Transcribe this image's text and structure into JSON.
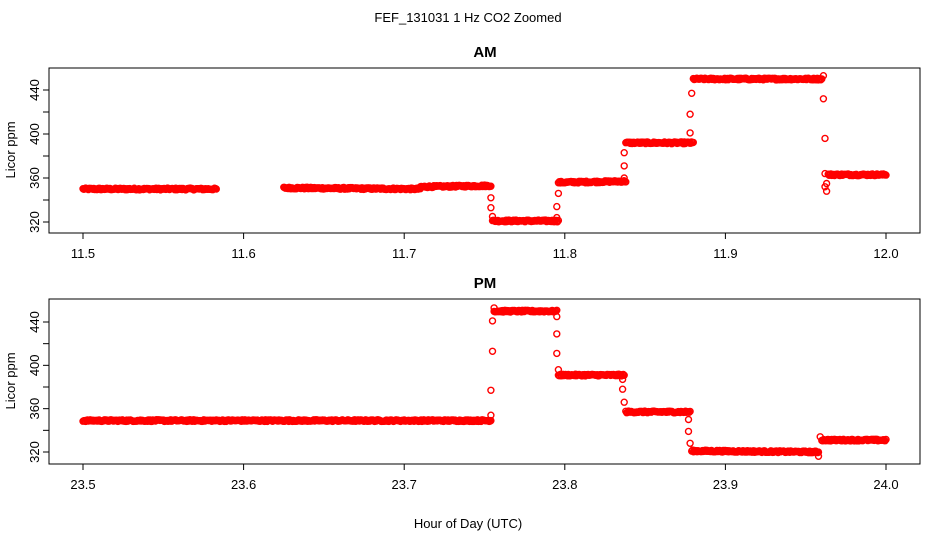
{
  "figure_title": "FEF_131031  1 Hz CO2 Zoomed",
  "shared_xlabel": "Hour of Day (UTC)",
  "chart_data": [
    {
      "type": "scatter",
      "title": "AM",
      "xlabel": "",
      "ylabel": "Licor ppm",
      "xlim": [
        11.5,
        12.0
      ],
      "ylim": [
        315,
        460
      ],
      "x_ticks": [
        "11.5",
        "11.6",
        "11.7",
        "11.8",
        "11.9",
        "12.0"
      ],
      "x_tick_values": [
        11.5,
        11.6,
        11.7,
        11.8,
        11.9,
        12.0
      ],
      "y_ticks": [
        "320",
        "360",
        "400",
        "440"
      ],
      "y_tick_values": [
        320,
        360,
        400,
        440
      ],
      "marker": "open-circle",
      "color": "#ff0000",
      "segments": [
        {
          "x_start": 11.5,
          "x_end": 11.583,
          "y_start": 350,
          "y_end": 350
        },
        {
          "x_start": 11.625,
          "x_end": 11.71,
          "y_start": 351,
          "y_end": 350
        },
        {
          "x_start": 11.71,
          "x_end": 11.754,
          "y_start": 352,
          "y_end": 353
        },
        {
          "x_start": 11.755,
          "x_end": 11.796,
          "y_start": 321,
          "y_end": 321
        },
        {
          "x_start": 11.796,
          "x_end": 11.838,
          "y_start": 356,
          "y_end": 357
        },
        {
          "x_start": 11.838,
          "x_end": 11.88,
          "y_start": 392,
          "y_end": 392
        },
        {
          "x_start": 11.88,
          "x_end": 11.96,
          "y_start": 450,
          "y_end": 450
        },
        {
          "x_start": 11.964,
          "x_end": 12.0,
          "y_start": 363,
          "y_end": 363
        }
      ],
      "transitions": [
        {
          "x": 11.754,
          "y": 342
        },
        {
          "x": 11.754,
          "y": 333
        },
        {
          "x": 11.755,
          "y": 325
        },
        {
          "x": 11.795,
          "y": 324
        },
        {
          "x": 11.795,
          "y": 334
        },
        {
          "x": 11.796,
          "y": 346
        },
        {
          "x": 11.837,
          "y": 360
        },
        {
          "x": 11.837,
          "y": 371
        },
        {
          "x": 11.837,
          "y": 383
        },
        {
          "x": 11.878,
          "y": 401
        },
        {
          "x": 11.878,
          "y": 418
        },
        {
          "x": 11.879,
          "y": 437
        },
        {
          "x": 11.961,
          "y": 453
        },
        {
          "x": 11.961,
          "y": 432
        },
        {
          "x": 11.962,
          "y": 396
        },
        {
          "x": 11.962,
          "y": 364
        },
        {
          "x": 11.962,
          "y": 352
        },
        {
          "x": 11.963,
          "y": 348
        },
        {
          "x": 11.963,
          "y": 355
        }
      ]
    },
    {
      "type": "scatter",
      "title": "PM",
      "xlabel": "Hour of Day (UTC)",
      "ylabel": "Licor ppm",
      "xlim": [
        23.5,
        24.0
      ],
      "ylim": [
        312,
        460
      ],
      "x_ticks": [
        "23.5",
        "23.6",
        "23.7",
        "23.8",
        "23.9",
        "24.0"
      ],
      "x_tick_values": [
        23.5,
        23.6,
        23.7,
        23.8,
        23.9,
        24.0
      ],
      "y_ticks": [
        "320",
        "360",
        "400",
        "440"
      ],
      "y_tick_values": [
        320,
        360,
        400,
        440
      ],
      "marker": "open-circle",
      "color": "#ff0000",
      "segments": [
        {
          "x_start": 23.5,
          "x_end": 23.754,
          "y_start": 349,
          "y_end": 349
        },
        {
          "x_start": 23.756,
          "x_end": 23.795,
          "y_start": 450,
          "y_end": 450
        },
        {
          "x_start": 23.796,
          "x_end": 23.837,
          "y_start": 391,
          "y_end": 391
        },
        {
          "x_start": 23.838,
          "x_end": 23.878,
          "y_start": 357,
          "y_end": 357
        },
        {
          "x_start": 23.879,
          "x_end": 23.958,
          "y_start": 321,
          "y_end": 320
        },
        {
          "x_start": 23.96,
          "x_end": 24.0,
          "y_start": 331,
          "y_end": 331
        }
      ],
      "transitions": [
        {
          "x": 23.754,
          "y": 354
        },
        {
          "x": 23.754,
          "y": 377
        },
        {
          "x": 23.755,
          "y": 413
        },
        {
          "x": 23.755,
          "y": 441
        },
        {
          "x": 23.756,
          "y": 453
        },
        {
          "x": 23.795,
          "y": 445
        },
        {
          "x": 23.795,
          "y": 429
        },
        {
          "x": 23.795,
          "y": 411
        },
        {
          "x": 23.796,
          "y": 396
        },
        {
          "x": 23.836,
          "y": 387
        },
        {
          "x": 23.836,
          "y": 378
        },
        {
          "x": 23.837,
          "y": 366
        },
        {
          "x": 23.877,
          "y": 350
        },
        {
          "x": 23.877,
          "y": 339
        },
        {
          "x": 23.878,
          "y": 328
        },
        {
          "x": 23.958,
          "y": 316
        },
        {
          "x": 23.959,
          "y": 334
        }
      ]
    }
  ]
}
